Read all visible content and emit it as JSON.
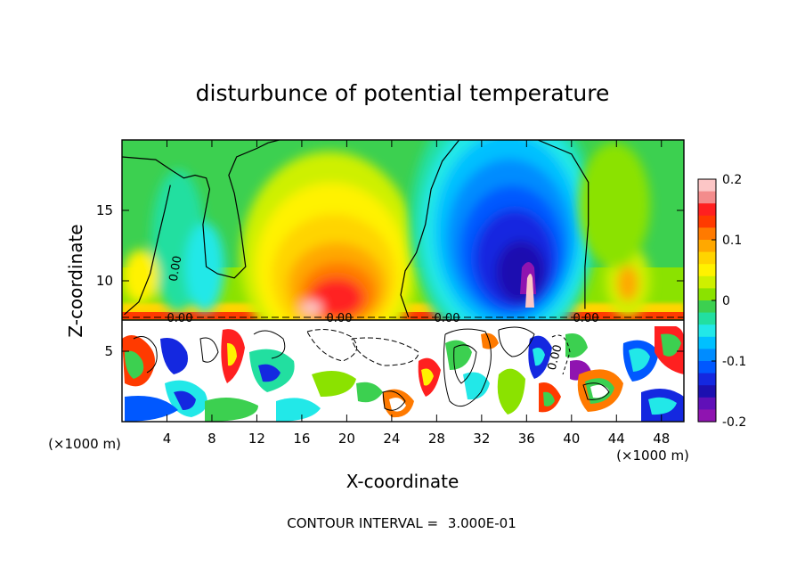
{
  "chart_data": {
    "type": "heatmap",
    "title": "disturbunce of potential temperature",
    "xlabel": "X-coordinate",
    "ylabel": "Z-coordinate",
    "x_unit": "(×1000 m)",
    "xlim": [
      0,
      50
    ],
    "ylim": [
      0,
      20
    ],
    "x_ticks": [
      4,
      8,
      12,
      16,
      20,
      24,
      28,
      32,
      36,
      40,
      44,
      48
    ],
    "y_ticks": [
      5,
      10,
      15
    ],
    "colorbar": {
      "range": [
        -0.2,
        0.2
      ],
      "tick_labels": [
        "0.2",
        "0.1",
        "0",
        "-0.1",
        "-0.2"
      ],
      "colors": [
        "#fcc6c6",
        "#f38c8c",
        "#ff2020",
        "#ff3a00",
        "#ff7a00",
        "#ffa800",
        "#ffd400",
        "#fff200",
        "#cef000",
        "#8be200",
        "#3cd050",
        "#22dfa0",
        "#22e8e8",
        "#00c0ff",
        "#008cff",
        "#0058ff",
        "#1428e0",
        "#1c10b0",
        "#6010b8",
        "#8f14b0"
      ]
    },
    "contour_labels": [
      "0.00",
      "0.00",
      "0.00",
      "0.00",
      "0.00",
      "0.00"
    ],
    "contour_interval_label": "CONTOUR INTERVAL =",
    "contour_interval": "3.000E-01",
    "features": [
      {
        "kind": "warm-anomaly",
        "x": 18.5,
        "z": 10.5,
        "value": 0.17
      },
      {
        "kind": "warm-anomaly",
        "x": 2.5,
        "z": 9.5,
        "value": 0.09
      },
      {
        "kind": "warm-anomaly",
        "x": 43.5,
        "z": 10,
        "value": 0.08
      },
      {
        "kind": "cold-anomaly",
        "x": 35.5,
        "z": 11.5,
        "value": -0.19
      },
      {
        "kind": "cold-anomaly",
        "x": 35.5,
        "z": 16,
        "value": -0.1
      }
    ],
    "zero_contours": [
      {
        "x": [
          0,
          3,
          4.5,
          5.5,
          6.5,
          7.5,
          7.8,
          7.2,
          7.5,
          8.5,
          10,
          11,
          10.5,
          10,
          9.5,
          10.2,
          12,
          13,
          14
        ],
        "z": [
          18.8,
          18.6,
          17.8,
          17.3,
          17.5,
          17.3,
          16.5,
          14,
          11,
          10.5,
          10.2,
          11,
          14,
          16.2,
          17.5,
          18.8,
          19.4,
          19.8,
          20
        ]
      },
      {
        "x": [
          0.2,
          1.5,
          2.5,
          3.2,
          3.8,
          4.3
        ],
        "z": [
          7.6,
          8.5,
          10.5,
          13,
          15,
          16.8
        ]
      },
      {
        "x": [
          25.5,
          24.8,
          25.2,
          26.2,
          27,
          27.5,
          28.5,
          30,
          33,
          37,
          40,
          41.5,
          41.5,
          41.2,
          41.2
        ],
        "z": [
          7.4,
          9,
          10.7,
          12,
          14,
          16.5,
          18.5,
          20,
          20,
          20,
          19,
          17,
          14,
          11,
          8
        ]
      }
    ]
  }
}
